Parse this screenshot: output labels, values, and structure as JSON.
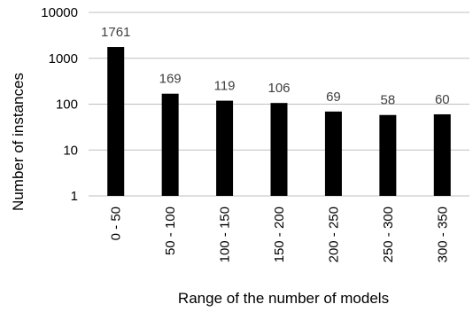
{
  "chart_data": {
    "type": "bar",
    "categories": [
      "0 - 50",
      "50 - 100",
      "100 - 150",
      "150 - 200",
      "200 - 250",
      "250 - 300",
      "300 - 350"
    ],
    "values": [
      1761,
      169,
      119,
      106,
      69,
      58,
      60
    ],
    "data_labels": [
      "1761",
      "169",
      "119",
      "106",
      "69",
      "58",
      "60"
    ],
    "title": "",
    "xlabel": "Range of the number of models",
    "ylabel": "Number of instances",
    "yscale": "log",
    "ylim": [
      1,
      10000
    ],
    "yticks": [
      1,
      10,
      100,
      1000,
      10000
    ],
    "ytick_labels": [
      "1",
      "10",
      "100",
      "1000",
      "10000"
    ],
    "grid": true,
    "legend": "none",
    "colors": {
      "bar": "#000000",
      "grid": "#bfbfbf",
      "data_label": "#404040"
    }
  }
}
